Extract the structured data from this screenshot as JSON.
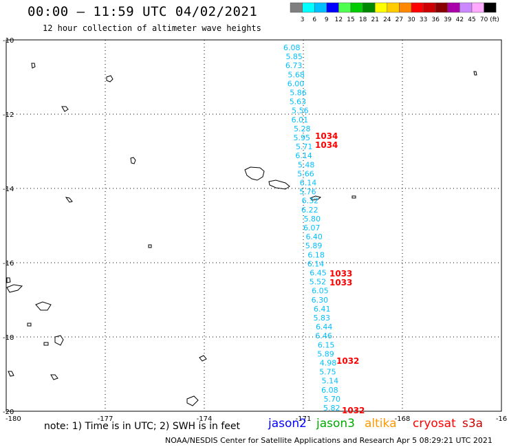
{
  "header": {
    "title": "00:00 — 11:59 UTC 04/02/2021",
    "subtitle": "12 hour collection of altimeter wave heights"
  },
  "legend": {
    "unit_label": "(ft)",
    "bins": [
      {
        "label": "3",
        "color": "#7f7f7f"
      },
      {
        "label": "6",
        "color": "#00ffff"
      },
      {
        "label": "9",
        "color": "#00bfff"
      },
      {
        "label": "12",
        "color": "#0000ff"
      },
      {
        "label": "15",
        "color": "#4fff4f"
      },
      {
        "label": "18",
        "color": "#00cc00"
      },
      {
        "label": "21",
        "color": "#008800"
      },
      {
        "label": "24",
        "color": "#ffff00"
      },
      {
        "label": "27",
        "color": "#ffcc00"
      },
      {
        "label": "30",
        "color": "#ff8800"
      },
      {
        "label": "33",
        "color": "#ff0000"
      },
      {
        "label": "36",
        "color": "#cc0000"
      },
      {
        "label": "39",
        "color": "#880000"
      },
      {
        "label": "42",
        "color": "#aa00aa"
      },
      {
        "label": "45",
        "color": "#cc88ff"
      },
      {
        "label": "70",
        "color": "#ffaaff"
      },
      {
        "label": "",
        "color": "#000000"
      }
    ]
  },
  "axes": {
    "lon_ticks": [
      "-180",
      "-177",
      "-174",
      "-171",
      "-168",
      "-16"
    ],
    "lat_ticks": [
      "-10",
      "-12",
      "-14",
      "-16",
      "-18",
      "-20"
    ]
  },
  "wave_heights": {
    "unit": "ft",
    "color": "#00bfff",
    "values": [
      "6.08",
      "5.85",
      "6.73",
      "5.68",
      "6.00",
      "5.86",
      "5.63",
      "5.56",
      "6.01",
      "5.28",
      "5.95",
      "5.71",
      "6.14",
      "5.48",
      "5.66",
      "6.14",
      "5.76",
      "6.32",
      "6.22",
      "5.80",
      "6.07",
      "6.40",
      "5.89",
      "6.18",
      "6.14",
      "6.45",
      "5.52",
      "6.05",
      "6.30",
      "6.41",
      "5.83",
      "6.44",
      "6.46",
      "6.15",
      "5.89",
      "4.98",
      "5.75",
      "5.14",
      "6.08",
      "5.70",
      "5.82"
    ]
  },
  "time_labels": {
    "color": "#ff0000",
    "values": [
      "1034",
      "1034",
      "1033",
      "1033",
      "1032",
      "1032"
    ]
  },
  "footer": {
    "note": "note: 1) Time is in UTC; 2) SWH is in feet",
    "credit": "NOAA/NESDIS Center for Satellite Applications and Research   Apr  5 08:29:21 UTC 2021",
    "satellites": [
      {
        "name": "jason2",
        "color": "#0000ff"
      },
      {
        "name": "jason3",
        "color": "#00aa00"
      },
      {
        "name": "altika",
        "color": "#ff9900"
      },
      {
        "name": "cryosat",
        "color": "#ff0000"
      },
      {
        "name": "s3a",
        "color": "#cc0000"
      }
    ]
  }
}
